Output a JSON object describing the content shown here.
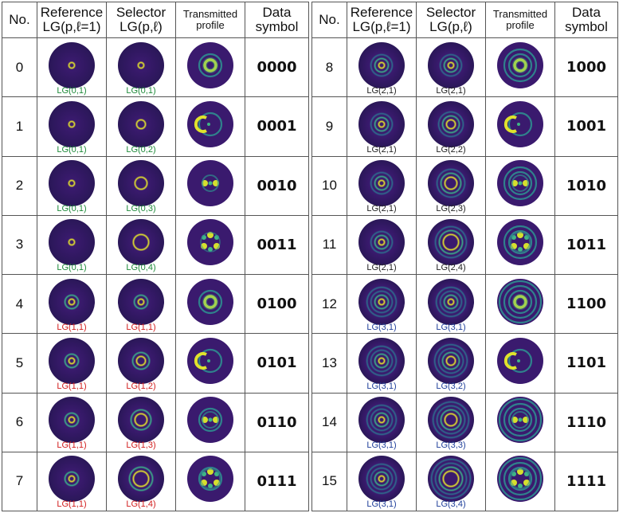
{
  "headers": {
    "no": "No.",
    "reference": [
      "Reference",
      "LG(p,ℓ=1)"
    ],
    "selector": [
      "Selector",
      "LG(p,ℓ)"
    ],
    "transmitted": [
      "Transmitted",
      "profile"
    ],
    "symbol": [
      "Data",
      "symbol"
    ]
  },
  "colors": {
    "green": "#1e8a3a",
    "red": "#d21e1e",
    "blue": "#1f3f9a",
    "black": "#222222"
  },
  "rows": [
    {
      "no": "0",
      "ref": "LG(0,1)",
      "sel": "LG(0,1)",
      "sym": "0000",
      "tone": "green",
      "rp": 0,
      "rl": 1,
      "sp": 0,
      "sl": 1,
      "tx": "ring"
    },
    {
      "no": "1",
      "ref": "LG(0,1)",
      "sel": "LG(0,2)",
      "sym": "0001",
      "tone": "green",
      "rp": 0,
      "rl": 1,
      "sp": 0,
      "sl": 2,
      "tx": "crescent"
    },
    {
      "no": "2",
      "ref": "LG(0,1)",
      "sel": "LG(0,3)",
      "sym": "0010",
      "tone": "green",
      "rp": 0,
      "rl": 1,
      "sp": 0,
      "sl": 3,
      "tx": "lobes2"
    },
    {
      "no": "3",
      "ref": "LG(0,1)",
      "sel": "LG(0,4)",
      "sym": "0011",
      "tone": "green",
      "rp": 0,
      "rl": 1,
      "sp": 0,
      "sl": 4,
      "tx": "lobes3"
    },
    {
      "no": "4",
      "ref": "LG(1,1)",
      "sel": "LG(1,1)",
      "sym": "0100",
      "tone": "red",
      "rp": 1,
      "rl": 1,
      "sp": 1,
      "sl": 1,
      "tx": "rings2"
    },
    {
      "no": "5",
      "ref": "LG(1,1)",
      "sel": "LG(1,2)",
      "sym": "0101",
      "tone": "red",
      "rp": 1,
      "rl": 1,
      "sp": 1,
      "sl": 2,
      "tx": "crescent2"
    },
    {
      "no": "6",
      "ref": "LG(1,1)",
      "sel": "LG(1,3)",
      "sym": "0110",
      "tone": "red",
      "rp": 1,
      "rl": 1,
      "sp": 1,
      "sl": 3,
      "tx": "lobes2r"
    },
    {
      "no": "7",
      "ref": "LG(1,1)",
      "sel": "LG(1,4)",
      "sym": "0111",
      "tone": "red",
      "rp": 1,
      "rl": 1,
      "sp": 1,
      "sl": 4,
      "tx": "lobes3r"
    },
    {
      "no": "8",
      "ref": "LG(2,1)",
      "sel": "LG(2,1)",
      "sym": "1000",
      "tone": "black",
      "rp": 2,
      "rl": 1,
      "sp": 2,
      "sl": 1,
      "tx": "rings3"
    },
    {
      "no": "9",
      "ref": "LG(2,1)",
      "sel": "LG(2,2)",
      "sym": "1001",
      "tone": "black",
      "rp": 2,
      "rl": 1,
      "sp": 2,
      "sl": 2,
      "tx": "crescent3"
    },
    {
      "no": "10",
      "ref": "LG(2,1)",
      "sel": "LG(2,3)",
      "sym": "1010",
      "tone": "black",
      "rp": 2,
      "rl": 1,
      "sp": 2,
      "sl": 3,
      "tx": "lobes2rr"
    },
    {
      "no": "11",
      "ref": "LG(2,1)",
      "sel": "LG(2,4)",
      "sym": "1011",
      "tone": "black",
      "rp": 2,
      "rl": 1,
      "sp": 2,
      "sl": 4,
      "tx": "lobes3rr"
    },
    {
      "no": "12",
      "ref": "LG(3,1)",
      "sel": "LG(3,1)",
      "sym": "1100",
      "tone": "blue",
      "rp": 3,
      "rl": 1,
      "sp": 3,
      "sl": 1,
      "tx": "rings4"
    },
    {
      "no": "13",
      "ref": "LG(3,1)",
      "sel": "LG(3,2)",
      "sym": "1101",
      "tone": "blue",
      "rp": 3,
      "rl": 1,
      "sp": 3,
      "sl": 2,
      "tx": "crescent4"
    },
    {
      "no": "14",
      "ref": "LG(3,1)",
      "sel": "LG(3,3)",
      "sym": "1110",
      "tone": "blue",
      "rp": 3,
      "rl": 1,
      "sp": 3,
      "sl": 3,
      "tx": "lobes2rrr"
    },
    {
      "no": "15",
      "ref": "LG(3,1)",
      "sel": "LG(3,4)",
      "sym": "1111",
      "tone": "blue",
      "rp": 3,
      "rl": 1,
      "sp": 3,
      "sl": 4,
      "tx": "lobes3rrr"
    }
  ]
}
